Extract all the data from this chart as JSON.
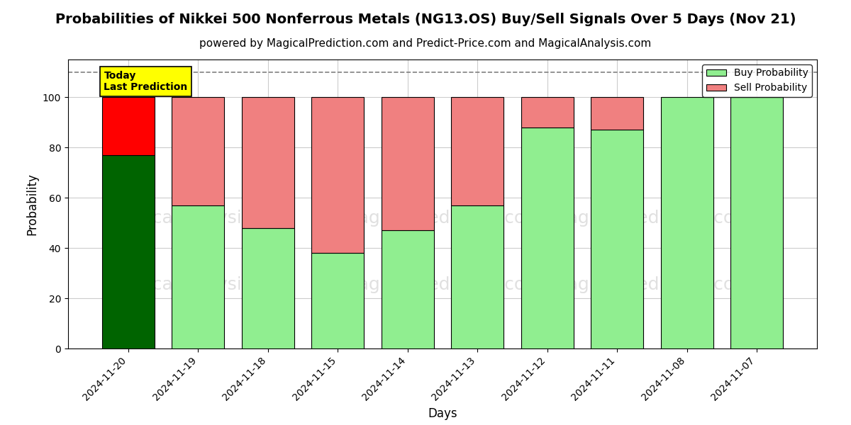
{
  "title": "Probabilities of Nikkei 500 Nonferrous Metals (NG13.OS) Buy/Sell Signals Over 5 Days (Nov 21)",
  "subtitle": "powered by MagicalPrediction.com and Predict-Price.com and MagicalAnalysis.com",
  "xlabel": "Days",
  "ylabel": "Probability",
  "categories": [
    "2024-11-20",
    "2024-11-19",
    "2024-11-18",
    "2024-11-15",
    "2024-11-14",
    "2024-11-13",
    "2024-11-12",
    "2024-11-11",
    "2024-11-08",
    "2024-11-07"
  ],
  "buy_values": [
    77,
    57,
    48,
    38,
    47,
    57,
    88,
    87,
    100,
    100
  ],
  "sell_values": [
    23,
    43,
    52,
    62,
    53,
    43,
    12,
    13,
    0,
    0
  ],
  "buy_colors": [
    "#006400",
    "#90EE90",
    "#90EE90",
    "#90EE90",
    "#90EE90",
    "#90EE90",
    "#90EE90",
    "#90EE90",
    "#90EE90",
    "#90EE90"
  ],
  "sell_colors": [
    "#FF0000",
    "#F08080",
    "#F08080",
    "#F08080",
    "#F08080",
    "#F08080",
    "#F08080",
    "#F08080",
    "#F08080",
    "#F08080"
  ],
  "legend_buy_color": "#90EE90",
  "legend_sell_color": "#F08080",
  "today_box_color": "#FFFF00",
  "today_text": "Today\nLast Prediction",
  "dashed_line_y": 110,
  "ylim": [
    0,
    115
  ],
  "yticks": [
    0,
    20,
    40,
    60,
    80,
    100
  ],
  "background_color": "#ffffff",
  "grid_color": "#cccccc",
  "watermark_color": "#cccccc",
  "title_fontsize": 14,
  "subtitle_fontsize": 11
}
